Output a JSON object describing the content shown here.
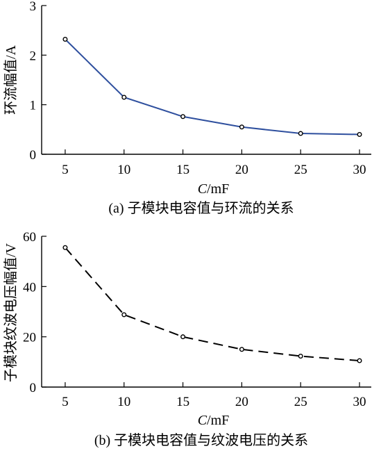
{
  "chart_data": [
    {
      "type": "line",
      "caption": "(a)  子模块电容值与环流的关系",
      "xlabel_var": "C",
      "xlabel_unit": "/mF",
      "ylabel": "环流幅值/A",
      "x": [
        5,
        10,
        15,
        20,
        25,
        30
      ],
      "series": [
        {
          "values": [
            2.32,
            1.15,
            0.76,
            0.55,
            0.42,
            0.4
          ],
          "color": "#2e4f9e",
          "style": "solid",
          "marker": "open-circle"
        }
      ],
      "xlim": [
        3,
        31
      ],
      "ylim": [
        0,
        3
      ],
      "xticks": [
        5,
        10,
        15,
        20,
        25,
        30
      ],
      "yticks": [
        0,
        1,
        2,
        3
      ],
      "grid": false,
      "legend": "none"
    },
    {
      "type": "line",
      "caption": "(b)  子模块电容值与纹波电压的关系",
      "xlabel_var": "C",
      "xlabel_unit": "/mF",
      "ylabel": "子模块纹波电压幅值/V",
      "x": [
        5,
        10,
        15,
        20,
        25,
        30
      ],
      "series": [
        {
          "values": [
            55.5,
            28.8,
            20.0,
            15.0,
            12.3,
            10.5
          ],
          "color": "#000000",
          "style": "dashed",
          "marker": "open-circle"
        }
      ],
      "xlim": [
        3,
        31
      ],
      "ylim": [
        0,
        60
      ],
      "xticks": [
        5,
        10,
        15,
        20,
        25,
        30
      ],
      "yticks": [
        0,
        20,
        40,
        60
      ],
      "grid": false,
      "legend": "none"
    }
  ]
}
